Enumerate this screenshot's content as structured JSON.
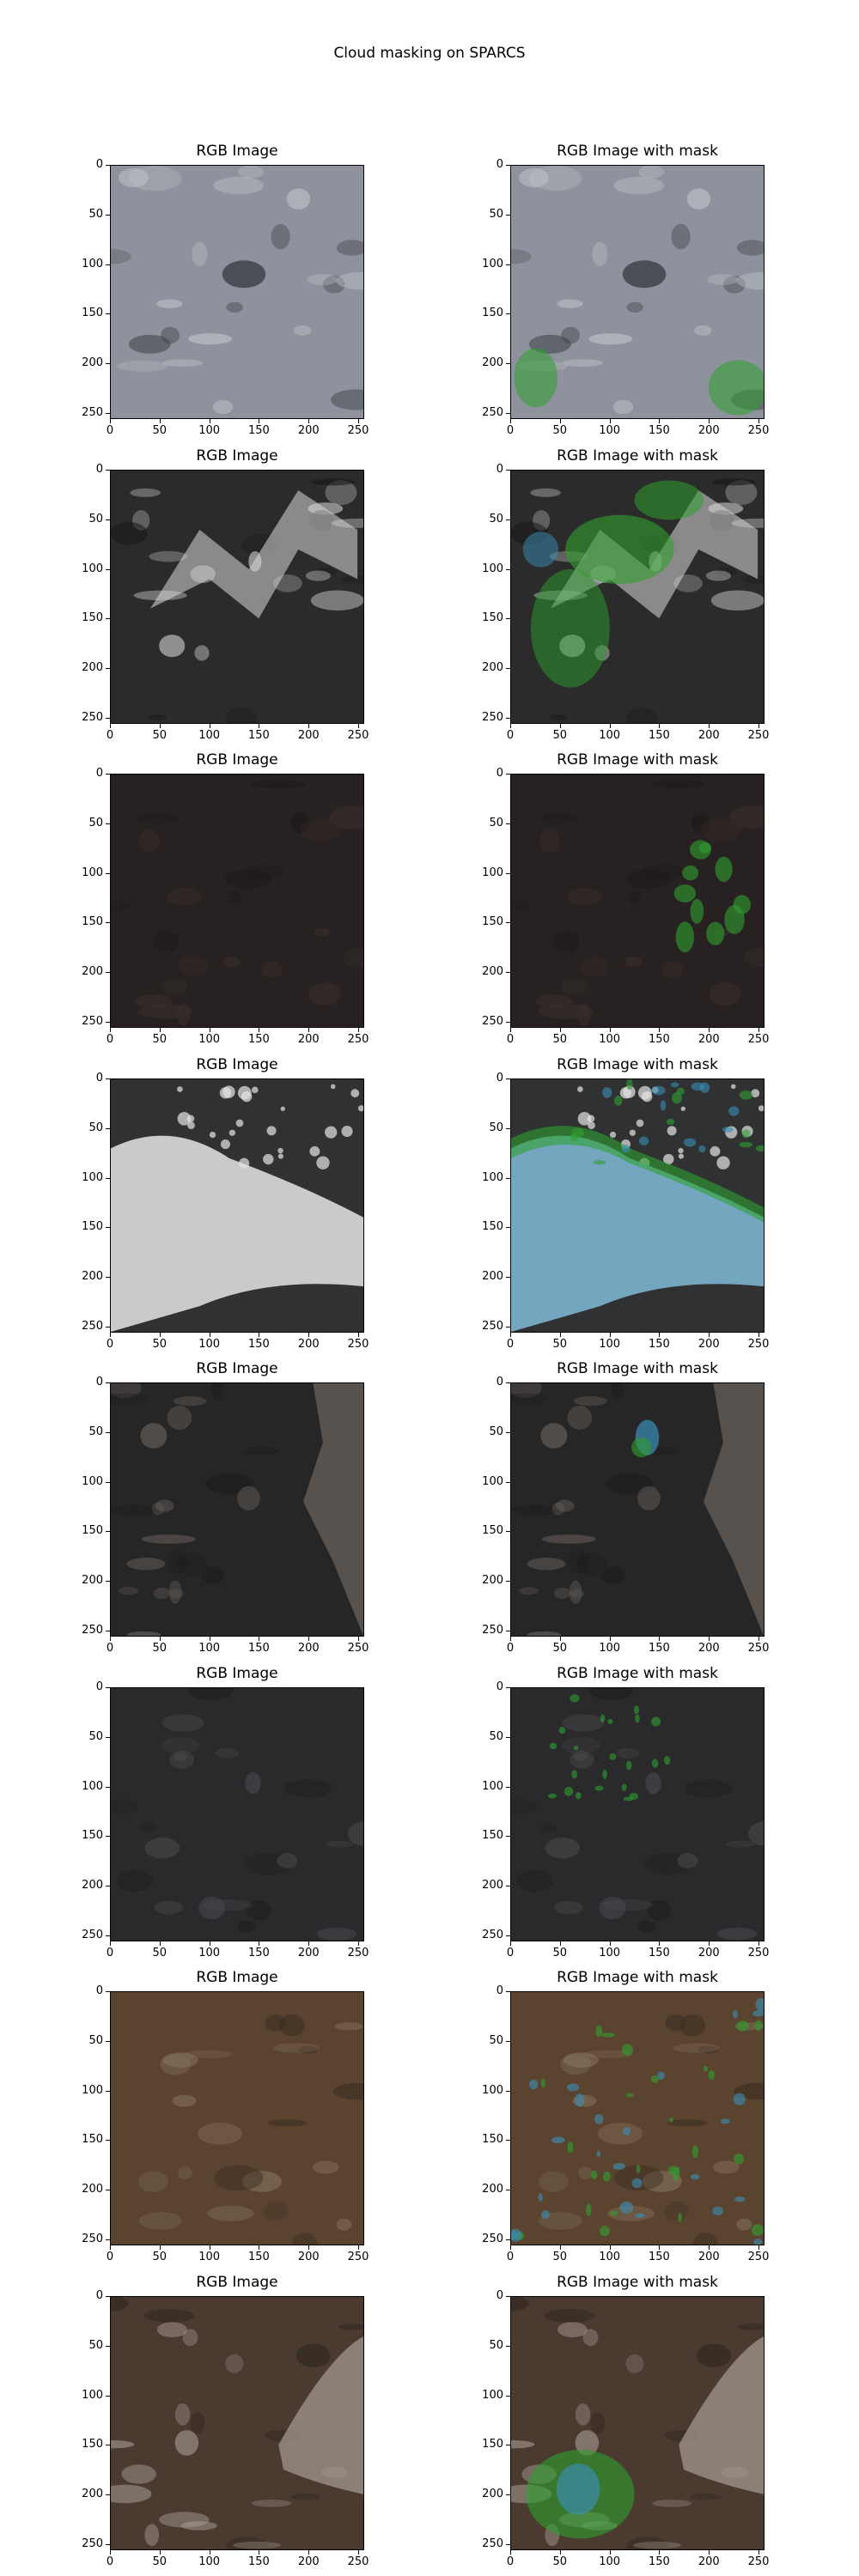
{
  "title": "Cloud masking on SPARCS",
  "panel_titles": {
    "left": "RGB Image",
    "right": "RGB Image with mask"
  },
  "axes": {
    "x_ticks": [
      "0",
      "50",
      "100",
      "150",
      "200",
      "250"
    ],
    "y_ticks": [
      "0",
      "50",
      "100",
      "150",
      "200",
      "250"
    ],
    "range": [
      0,
      256
    ]
  },
  "mask_colors": {
    "cloud": "#3a8fb7",
    "shadow": "#2ea02e"
  },
  "rows": [
    {
      "scene": "grey snowy terrain with dark lava patch",
      "base": "#8e929c",
      "tex": "#c5c8cf",
      "dark": "#3c3f46"
    },
    {
      "scene": "dark mountain ridges with snow",
      "base": "#2b2b2b",
      "tex": "#d8d8d8",
      "dark": "#151515"
    },
    {
      "scene": "very dark brown plain",
      "base": "#272221",
      "tex": "#3a2f2c",
      "dark": "#1b1818"
    },
    {
      "scene": "large white cloud over dark land",
      "base": "#2f3133",
      "tex": "#e5e5e5",
      "dark": "#1e1f21"
    },
    {
      "scene": "dark land with bright terrain at right",
      "base": "#262626",
      "tex": "#6d6560",
      "dark": "#1c1c1c"
    },
    {
      "scene": "dark grey fields with faint lines",
      "base": "#2a2a2d",
      "tex": "#4a4a4e",
      "dark": "#1c1c1e"
    },
    {
      "scene": "brown textured land with small clouds",
      "base": "#5a4430",
      "tex": "#8a7560",
      "dark": "#3a2c20"
    },
    {
      "scene": "brown land with light patches at right",
      "base": "#4a3a30",
      "tex": "#a89c94",
      "dark": "#2c241e"
    }
  ]
}
